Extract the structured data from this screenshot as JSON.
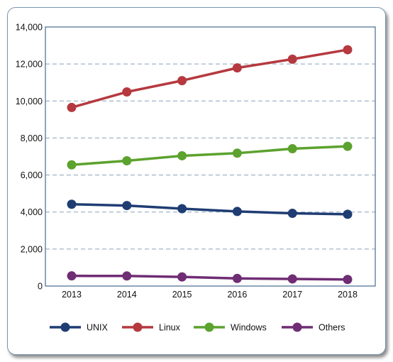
{
  "chart_data": {
    "type": "line",
    "categories": [
      "2013",
      "2014",
      "2015",
      "2016",
      "2017",
      "2018"
    ],
    "ylim": [
      0,
      14000
    ],
    "yticks": [
      "0",
      "2,000",
      "4,000",
      "6,000",
      "8,000",
      "10,000",
      "12,000",
      "14,000"
    ],
    "grid": "horizontal dashed",
    "legend_position": "bottom",
    "series": [
      {
        "name": "UNIX",
        "color": "#1f3d73",
        "values": [
          4420,
          4350,
          4180,
          4030,
          3930,
          3880
        ]
      },
      {
        "name": "Linux",
        "color": "#b5393f",
        "values": [
          9650,
          10490,
          11100,
          11790,
          12260,
          12770
        ]
      },
      {
        "name": "Windows",
        "color": "#5ca22e",
        "values": [
          6550,
          6770,
          7040,
          7180,
          7420,
          7550
        ]
      },
      {
        "name": "Others",
        "color": "#6f2d74",
        "values": [
          550,
          545,
          495,
          410,
          385,
          355
        ]
      }
    ]
  }
}
